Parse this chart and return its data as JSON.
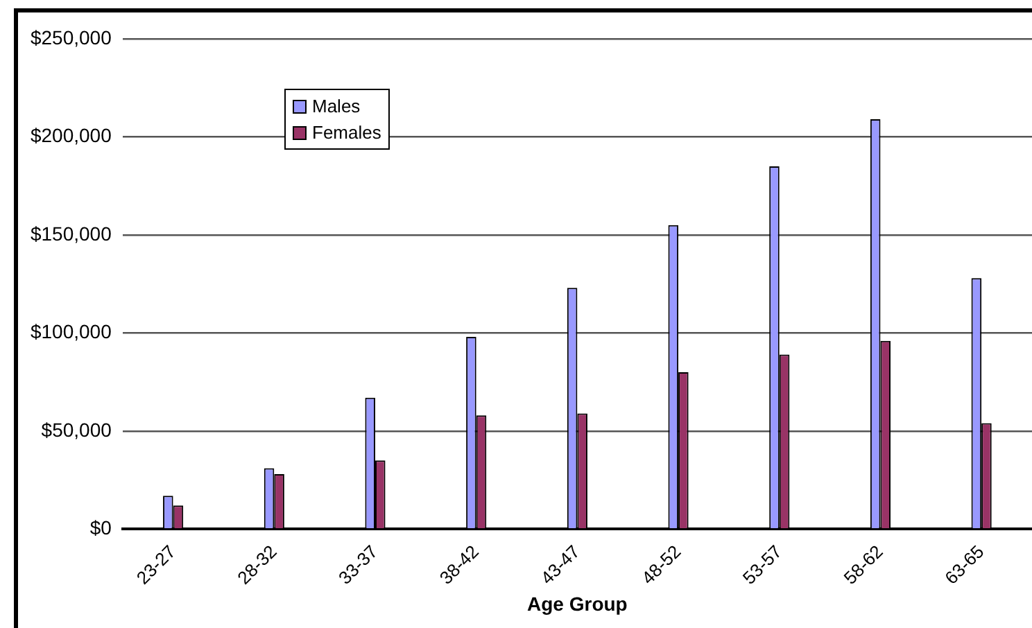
{
  "chart_data": {
    "type": "bar",
    "xlabel": "Age Group",
    "categories": [
      "23-27",
      "28-32",
      "33-37",
      "38-42",
      "43-47",
      "48-52",
      "53-57",
      "58-62",
      "63-65"
    ],
    "series": [
      {
        "name": "Males",
        "color": "#9999ff",
        "values": [
          17000,
          31000,
          67000,
          98000,
          123000,
          155000,
          185000,
          209000,
          128000
        ]
      },
      {
        "name": "Females",
        "color": "#993366",
        "values": [
          12000,
          28000,
          35000,
          58000,
          59000,
          80000,
          89000,
          96000,
          54000
        ]
      }
    ],
    "ylim": [
      0,
      250000
    ],
    "yticks": [
      {
        "value": 0,
        "label": "$0"
      },
      {
        "value": 50000,
        "label": "$50,000"
      },
      {
        "value": 100000,
        "label": "$100,000"
      },
      {
        "value": 150000,
        "label": "$150,000"
      },
      {
        "value": 200000,
        "label": "$200,000"
      },
      {
        "value": 250000,
        "label": "$250,000"
      }
    ],
    "grid": "y",
    "legend": "top left"
  }
}
